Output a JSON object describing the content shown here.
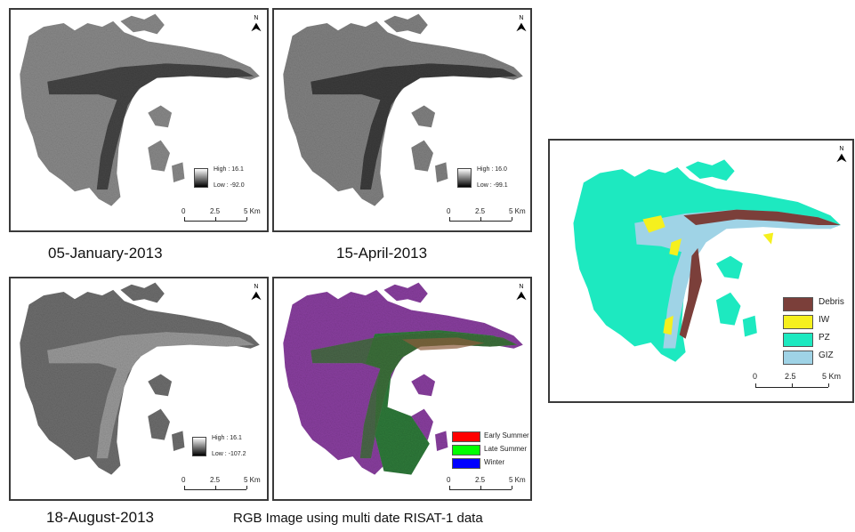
{
  "panels": {
    "jan": {
      "caption": "05-January-2013",
      "legend": {
        "high": "High : 16.1",
        "low": "Low : -92.0"
      },
      "scale": {
        "labels": [
          "0",
          "2.5",
          "5 Km"
        ]
      },
      "north": "N"
    },
    "apr": {
      "caption": "15-April-2013",
      "legend": {
        "high": "High : 16.0",
        "low": "Low : -99.1"
      },
      "scale": {
        "labels": [
          "0",
          "2.5",
          "5 Km"
        ]
      },
      "north": "N"
    },
    "aug": {
      "caption": "18-August-2013",
      "legend": {
        "high": "High : 16.1",
        "low": "Low : -107.2"
      },
      "scale": {
        "labels": [
          "0",
          "2.5",
          "5 Km"
        ]
      },
      "north": "N"
    },
    "rgb": {
      "caption": "RGB Image using multi date RISAT-1 data",
      "legend": [
        {
          "label": "Early Summer",
          "color": "#ff0000"
        },
        {
          "label": "Late Summer",
          "color": "#00ff00"
        },
        {
          "label": "Winter",
          "color": "#0000ff"
        }
      ],
      "scale": {
        "labels": [
          "0",
          "2.5",
          "5 Km"
        ]
      },
      "north": "N"
    },
    "classified": {
      "legend": [
        {
          "label": "Debris",
          "color": "#7b3f3a"
        },
        {
          "label": "IW",
          "color": "#f5f01e"
        },
        {
          "label": "PZ",
          "color": "#1de9c0"
        },
        {
          "label": "GIZ",
          "color": "#9fd3e6"
        }
      ],
      "scale": {
        "labels": [
          "0",
          "2.5",
          "5 Km"
        ]
      },
      "north": "N"
    }
  }
}
